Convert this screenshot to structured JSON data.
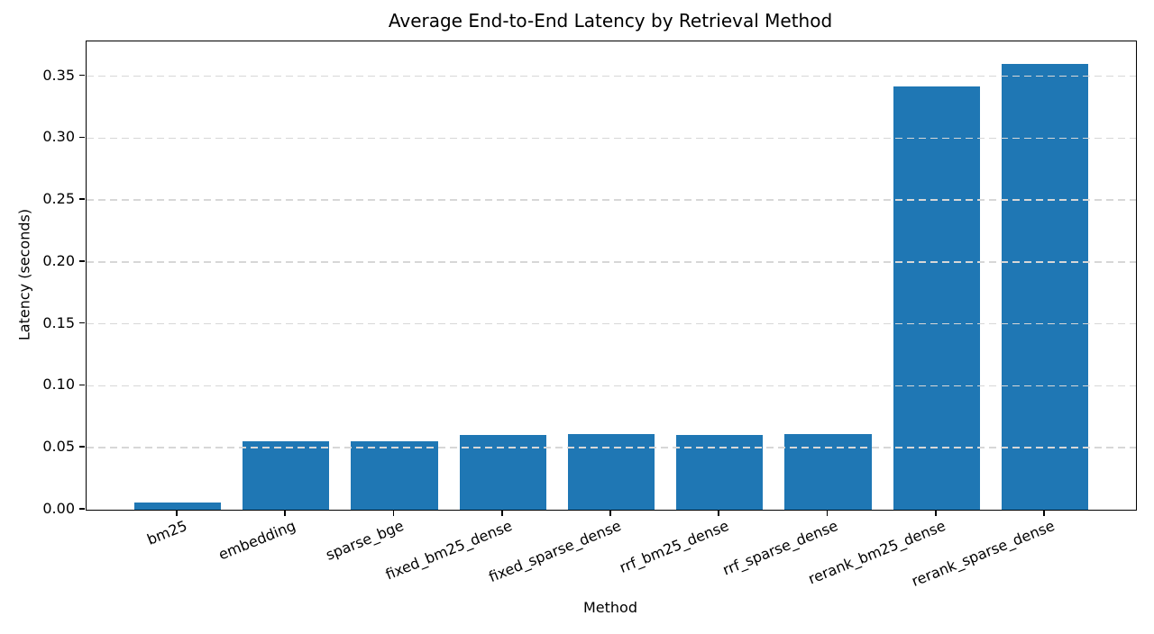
{
  "figure": {
    "background": "#ffffff",
    "text_color": "#000000"
  },
  "chart_data": {
    "type": "bar",
    "title": "Average End-to-End Latency by Retrieval Method",
    "xlabel": "Method",
    "ylabel": "Latency (seconds)",
    "categories": [
      "bm25",
      "embedding",
      "sparse_bge",
      "fixed_bm25_dense",
      "fixed_sparse_dense",
      "rrf_bm25_dense",
      "rrf_sparse_dense",
      "rerank_bm25_dense",
      "rerank_sparse_dense"
    ],
    "values": [
      0.006,
      0.055,
      0.055,
      0.06,
      0.061,
      0.06,
      0.061,
      0.342,
      0.36
    ],
    "yticks": [
      0.0,
      0.05,
      0.1,
      0.15,
      0.2,
      0.25,
      0.3,
      0.35
    ],
    "ytick_labels": [
      "0.00",
      "0.05",
      "0.10",
      "0.15",
      "0.20",
      "0.25",
      "0.30",
      "0.35"
    ],
    "ylim": [
      0,
      0.378
    ],
    "bar_color": "#1f77b4",
    "grid": true,
    "grid_style": "dashed",
    "grid_color": "#d7d7d7",
    "grid_above_bars": true,
    "spine_color": "#000000",
    "xtick_rotation_deg": 22,
    "legend": null
  }
}
